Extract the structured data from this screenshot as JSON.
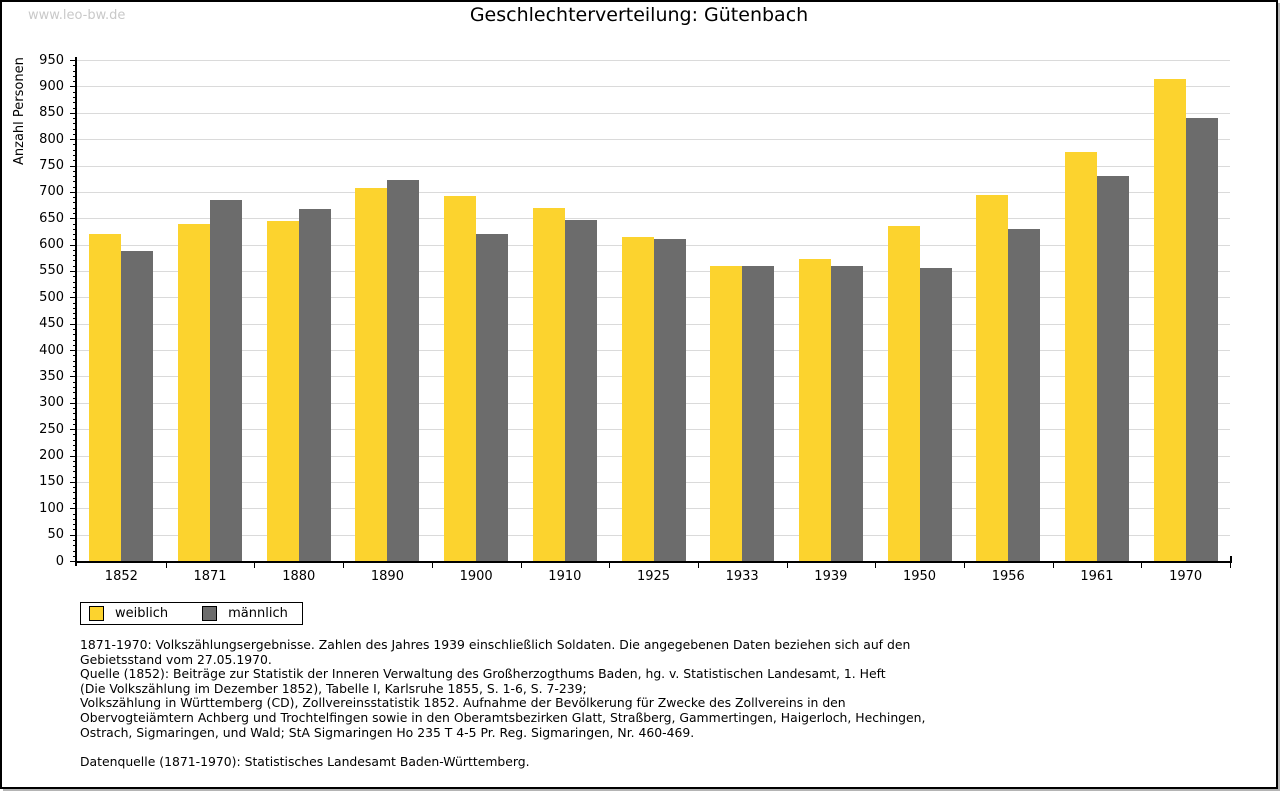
{
  "watermark": "www.leo-bw.de",
  "title": "Geschlechterverteilung: Gütenbach",
  "chart_data": {
    "type": "bar",
    "title": "Geschlechterverteilung: Gütenbach",
    "categories": [
      "1852",
      "1871",
      "1880",
      "1890",
      "1900",
      "1910",
      "1925",
      "1933",
      "1939",
      "1950",
      "1956",
      "1961",
      "1970"
    ],
    "series": [
      {
        "name": "weiblich",
        "color": "#FCD32E",
        "values": [
          620,
          640,
          645,
          708,
          692,
          670,
          614,
          559,
          573,
          636,
          694,
          775,
          915
        ]
      },
      {
        "name": "männlich",
        "color": "#6C6C6C",
        "values": [
          588,
          684,
          668,
          722,
          621,
          646,
          611,
          559,
          560,
          556,
          630,
          730,
          840
        ]
      }
    ],
    "xlabel": "",
    "ylabel": "Anzahl Personen",
    "ylim": [
      0,
      950
    ],
    "ytick_step": 50,
    "minor_tick_step": 10,
    "grid": true,
    "legend_position": "below-left"
  },
  "footnotes": {
    "lines": [
      "1871-1970: Volkszählungsergebnisse. Zahlen des Jahres 1939 einschließlich Soldaten. Die angegebenen Daten beziehen sich auf den",
      "Gebietsstand vom 27.05.1970.",
      "Quelle (1852): Beiträge zur Statistik der Inneren Verwaltung des Großherzogthums Baden, hg. v. Statistischen Landesamt, 1. Heft",
      "(Die Volkszählung im Dezember 1852), Tabelle I, Karlsruhe 1855, S. 1-6, S. 7-239;",
      "Volkszählung in Württemberg (CD), Zollvereinsstatistik 1852. Aufnahme der Bevölkerung für Zwecke des Zollvereins in den",
      "Obervogteiämtern Achberg und Trochtelfingen sowie in den Oberamtsbezirken Glatt, Straßberg, Gammertingen, Haigerloch, Hechingen,",
      "Ostrach, Sigmaringen, und Wald; StA Sigmaringen Ho 235 T 4-5 Pr. Reg. Sigmaringen, Nr. 460-469."
    ],
    "datasource": "Datenquelle (1871-1970): Statistisches Landesamt Baden-Württemberg."
  },
  "colors": {
    "female_bar": "#FCD32E",
    "male_bar": "#6C6C6C",
    "gridline": "#dadada",
    "axis": "#000000",
    "watermark": "#c9c9c9",
    "background": "#ffffff"
  }
}
